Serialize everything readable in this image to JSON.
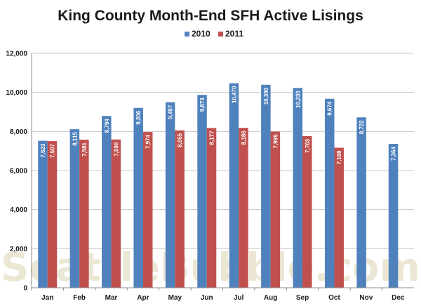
{
  "watermark": "SeattleBubble.com",
  "chart_data": {
    "type": "bar",
    "title": "King County Month-End SFH Active Lisings",
    "xlabel": "",
    "ylabel": "",
    "ylim": [
      0,
      12000
    ],
    "yticks": [
      "0",
      "2,000",
      "4,000",
      "6,000",
      "8,000",
      "10,000",
      "12,000"
    ],
    "grid": true,
    "legend_position": "top-center",
    "categories": [
      "Jan",
      "Feb",
      "Mar",
      "Apr",
      "May",
      "Jun",
      "Jul",
      "Aug",
      "Sep",
      "Oct",
      "Nov",
      "Dec"
    ],
    "series": [
      {
        "name": "2010",
        "color": "#4f81bd",
        "values": [
          7523,
          8115,
          8794,
          9206,
          9497,
          9873,
          10470,
          10390,
          10230,
          9674,
          8722,
          7364
        ],
        "labels": [
          "7,523",
          "8,115",
          "8,794",
          "9,206",
          "9,497",
          "9,873",
          "10,470",
          "10,390",
          "10,230",
          "9,674",
          "8,722",
          "7,364"
        ]
      },
      {
        "name": "2011",
        "color": "#c0504d",
        "values": [
          7507,
          7581,
          7590,
          7974,
          8055,
          8177,
          8186,
          7995,
          7763,
          7168,
          null,
          null
        ],
        "labels": [
          "7,507",
          "7,581",
          "7,590",
          "7,974",
          "8,055",
          "8,177",
          "8,186",
          "7,995",
          "7,763",
          "7,168",
          null,
          null
        ]
      }
    ]
  }
}
